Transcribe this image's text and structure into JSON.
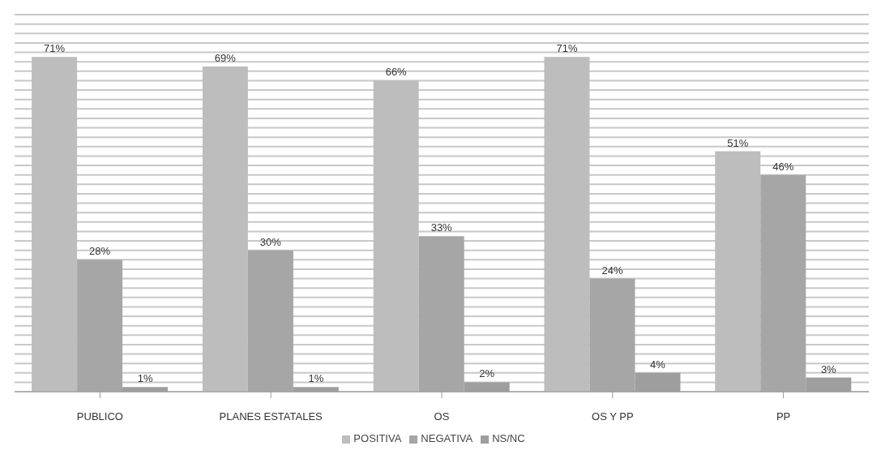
{
  "chart_data": {
    "type": "bar",
    "categories": [
      "PUBLICO",
      "PLANES ESTATALES",
      "OS",
      "OS Y PP",
      "PP"
    ],
    "series": [
      {
        "name": "POSITIVA",
        "color": "#bdbdbd",
        "values": [
          71,
          69,
          66,
          71,
          51
        ],
        "value_labels": [
          "71%",
          "69%",
          "66%",
          "71%",
          "51%"
        ]
      },
      {
        "name": "NEGATIVA",
        "color": "#a6a6a6",
        "values": [
          28,
          30,
          33,
          24,
          46
        ],
        "value_labels": [
          "28%",
          "30%",
          "33%",
          "24%",
          "46%"
        ]
      },
      {
        "name": "NS/NC",
        "color": "#9e9e9e",
        "values": [
          1,
          1,
          2,
          4,
          3
        ],
        "value_labels": [
          "1%",
          "1%",
          "2%",
          "4%",
          "3%"
        ]
      }
    ],
    "ylim": [
      0,
      80
    ],
    "yticks": [
      {
        "value": 0,
        "label": null
      },
      {
        "value": 2,
        "label": null
      },
      {
        "value": 4,
        "label": null
      },
      {
        "value": 6,
        "label": null
      },
      {
        "value": 8,
        "label": null
      },
      {
        "value": 10,
        "label": null
      },
      {
        "value": 12,
        "label": null
      },
      {
        "value": 14,
        "label": null
      },
      {
        "value": 16,
        "label": null
      },
      {
        "value": 18,
        "label": null
      },
      {
        "value": 20,
        "label": null
      },
      {
        "value": 22,
        "label": null
      },
      {
        "value": 24,
        "label": null
      },
      {
        "value": 26,
        "label": null
      },
      {
        "value": 28,
        "label": null
      },
      {
        "value": 30,
        "label": null
      },
      {
        "value": 32,
        "label": null
      },
      {
        "value": 34,
        "label": null
      },
      {
        "value": 36,
        "label": null
      },
      {
        "value": 38,
        "label": null
      },
      {
        "value": 40,
        "label": null
      },
      {
        "value": 42,
        "label": null
      },
      {
        "value": 44,
        "label": null
      },
      {
        "value": 46,
        "label": null
      },
      {
        "value": 48,
        "label": null
      },
      {
        "value": 50,
        "label": null
      },
      {
        "value": 52,
        "label": null
      },
      {
        "value": 54,
        "label": null
      },
      {
        "value": 56,
        "label": null
      },
      {
        "value": 58,
        "label": null
      },
      {
        "value": 60,
        "label": null
      },
      {
        "value": 62,
        "label": null
      },
      {
        "value": 64,
        "label": null
      },
      {
        "value": 66,
        "label": null
      },
      {
        "value": 68,
        "label": null
      },
      {
        "value": 70,
        "label": null
      },
      {
        "value": 72,
        "label": null
      },
      {
        "value": 74,
        "label": null
      },
      {
        "value": 76,
        "label": null
      },
      {
        "value": 78,
        "label": null
      },
      {
        "value": 80,
        "label": null
      }
    ],
    "grid": "y",
    "legend": "bottom",
    "tick_labels": "x"
  }
}
